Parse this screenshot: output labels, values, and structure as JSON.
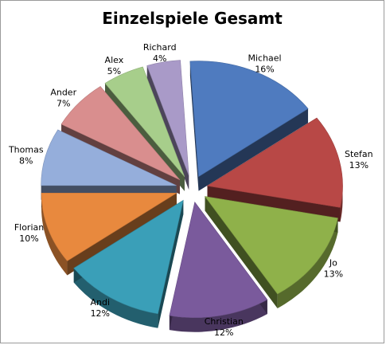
{
  "chart_data": {
    "type": "pie",
    "title": "Einzelspiele Gesamt",
    "categories": [
      "Richard",
      "Michael",
      "Stefan",
      "Jo",
      "Christian",
      "Andi",
      "Florian",
      "Thomas",
      "Ander",
      "Alex"
    ],
    "values": [
      4,
      16,
      13,
      13,
      12,
      12,
      10,
      8,
      7,
      5
    ],
    "value_labels": [
      "4%",
      "16%",
      "13%",
      "13%",
      "12%",
      "12%",
      "10%",
      "8%",
      "7%",
      "5%"
    ],
    "exploded": true,
    "style": "3d",
    "legend": "none",
    "colors": [
      "#a99ac8",
      "#4f7bbf",
      "#b84846",
      "#8fb14a",
      "#7a5a9c",
      "#3a9fb8",
      "#e8893e",
      "#95aedb",
      "#d98e8e",
      "#a7ce8b"
    ]
  }
}
